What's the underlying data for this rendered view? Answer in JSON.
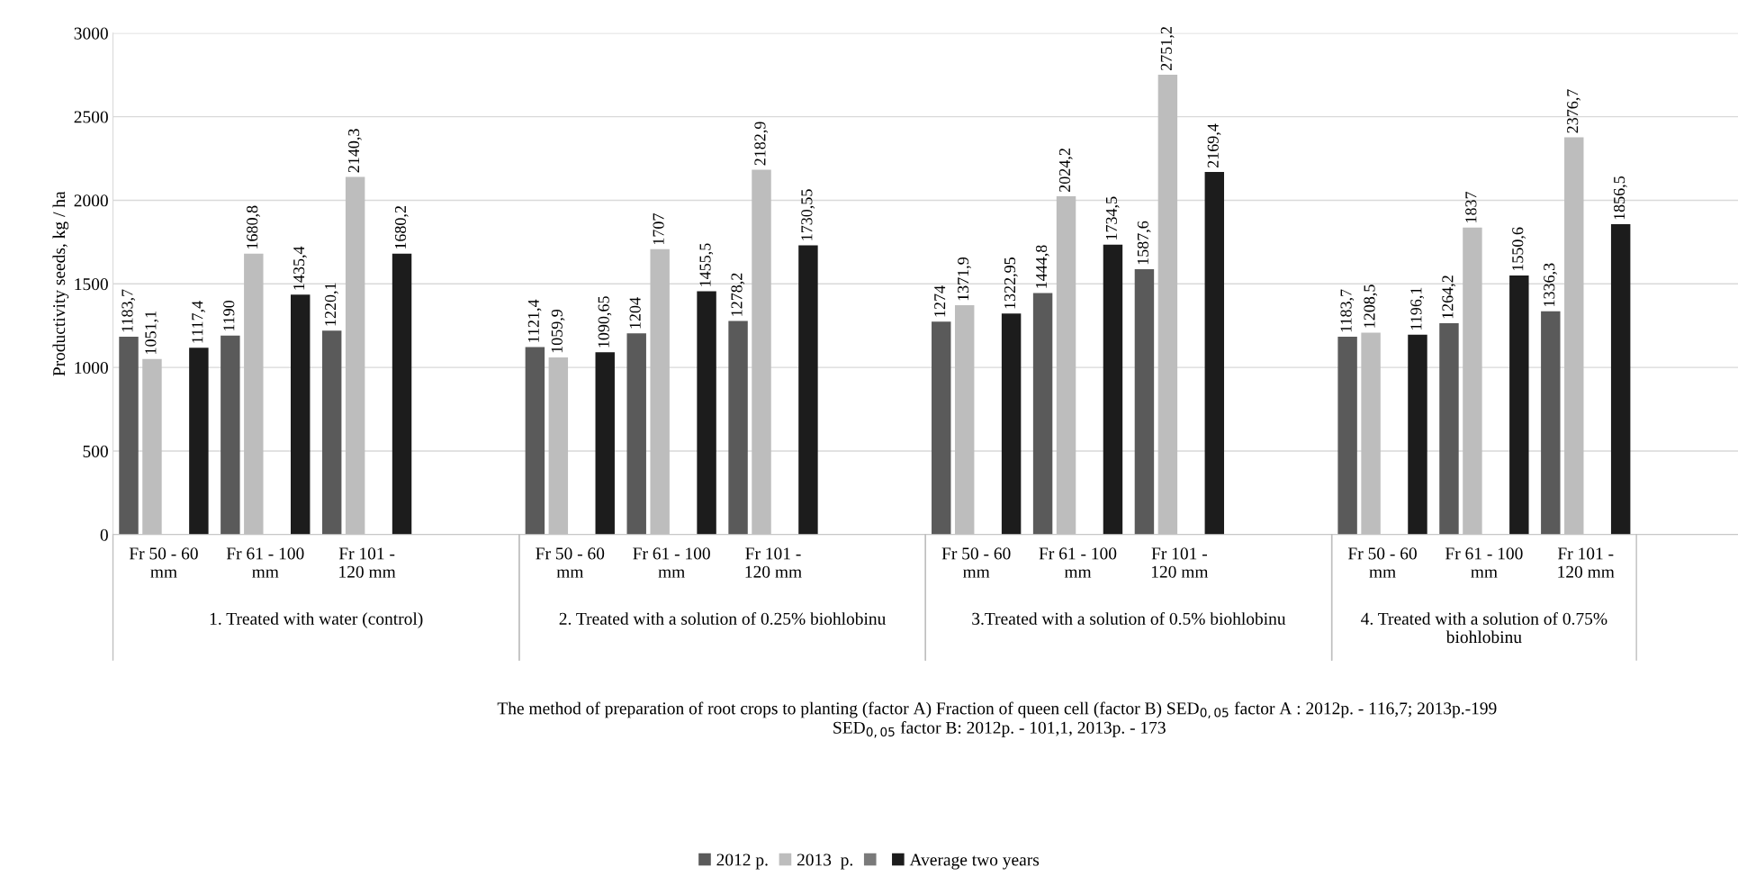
{
  "chart_data": {
    "type": "bar",
    "ylabel": "Productivity seeds, kg / ha",
    "categories": [
      "Fr 50 - 60 mm",
      "Fr 61 - 100 mm",
      "Fr 101 - 120 mm",
      null,
      "Fr 50 - 60 mm",
      "Fr 61 - 100 mm",
      "Fr 101 - 120 mm",
      null,
      "Fr 50 - 60 mm",
      "Fr 61 - 100 mm",
      "Fr 101 - 120 mm",
      null,
      "Fr 50 - 60 mm",
      "Fr 61 - 100 mm",
      "Fr 101 - 120 mm",
      null
    ],
    "annotations": [
      "1. Treated with water (control)",
      "2. Treated with a solution of 0.25% biohlobinu",
      "3.Treated with a solution of 0.5% biohlobinu",
      "4. Treated with a solution of 0.75% biohlobinu",
      "The method of preparation of root crops to planting (factor A) Fraction of queen cell (factor B) SED$_{0,05}$ factor A : 2012p. - 116,7; 2013p.-199  SED$_{0,05}$ factor B: 2012p. - 101,1, 2013p. - 173"
    ],
    "series": [
      {
        "name": "2012 p.",
        "color": "#5a5a5a",
        "values": [
          1183.7,
          1190,
          1220.1,
          null,
          1121.4,
          1204,
          1278.2,
          null,
          1274,
          1444.8,
          1587.6,
          null,
          1183.7,
          1264.2,
          1336.3,
          null
        ],
        "value_labels": [
          "1183,7",
          "1190",
          "1220,1",
          null,
          "1121,4",
          "1204",
          "1278,2",
          null,
          "1274",
          "1444,8",
          "1587,6",
          null,
          "1183,7",
          "1264,2",
          "1336,3",
          null
        ]
      },
      {
        "name": "2013  p.",
        "color": "#bdbdbd",
        "values": [
          1051.1,
          1680.8,
          2140.3,
          null,
          1059.9,
          1707,
          2182.9,
          null,
          1371.9,
          2024.2,
          2751.2,
          null,
          1208.5,
          1837,
          2376.7,
          null
        ],
        "value_labels": [
          "1051,1",
          "1680,8",
          "2140,3",
          null,
          "1059,9",
          "1707",
          "2182,9",
          null,
          "1371,9",
          "2024,2",
          "2751,2",
          null,
          "1208,5",
          "1837",
          "2376,7",
          null
        ]
      },
      {
        "color": "#7a7a7a",
        "values": [
          null,
          null,
          null,
          null,
          null,
          null,
          null,
          null,
          null,
          null,
          null,
          null,
          null,
          null,
          null,
          null
        ]
      },
      {
        "name": "Average two years",
        "color": "#1c1c1c",
        "values": [
          1117.4,
          1435.4,
          1680.2,
          null,
          1090.65,
          1455.5,
          1730.55,
          null,
          1322.95,
          1734.5,
          2169.4,
          null,
          1196.1,
          1550.6,
          1856.5,
          null
        ],
        "value_labels": [
          "1117,4",
          "1435,4",
          "1680,2",
          null,
          "1090,65",
          "1455,5",
          "1730,55",
          null,
          "1322,95",
          "1734,5",
          "2169,4",
          null,
          "1196,1",
          "1550,6",
          "1856,5",
          null
        ]
      }
    ],
    "ylim": [
      0,
      3000
    ],
    "yticks": [
      0,
      500,
      1000,
      1500,
      2000,
      2500,
      3000
    ],
    "grid": "y",
    "legend": "bottom"
  }
}
